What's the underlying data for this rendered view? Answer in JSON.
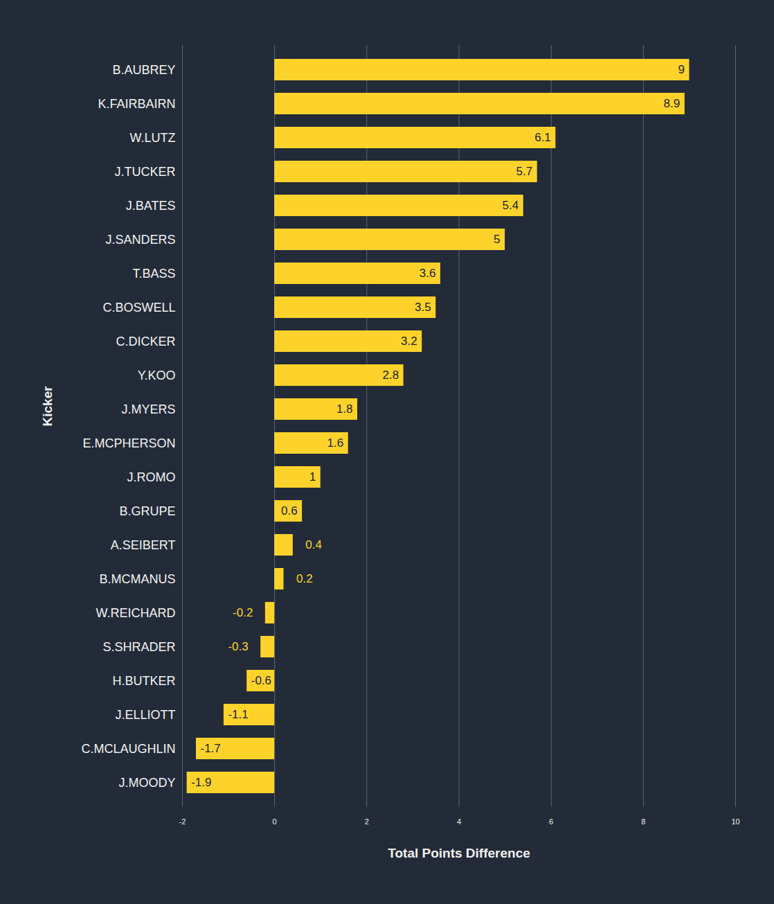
{
  "chart_data": {
    "type": "bar",
    "orientation": "horizontal",
    "xlabel": "Total Points Difference",
    "ylabel": "Kicker",
    "categories": [
      "B.AUBREY",
      "K.FAIRBAIRN",
      "W.LUTZ",
      "J.TUCKER",
      "J.BATES",
      "J.SANDERS",
      "T.BASS",
      "C.BOSWELL",
      "C.DICKER",
      "Y.KOO",
      "J.MYERS",
      "E.MCPHERSON",
      "J.ROMO",
      "B.GRUPE",
      "A.SEIBERT",
      "B.MCMANUS",
      "W.REICHARD",
      "S.SHRADER",
      "H.BUTKER",
      "J.ELLIOTT",
      "C.MCLAUGHLIN",
      "J.MOODY"
    ],
    "values": [
      9,
      8.9,
      6.1,
      5.7,
      5.4,
      5,
      3.6,
      3.5,
      3.2,
      2.8,
      1.8,
      1.6,
      1,
      0.6,
      0.4,
      0.2,
      -0.2,
      -0.3,
      -0.6,
      -1.1,
      -1.7,
      -1.9
    ],
    "color": "#fdd32b",
    "xlim": [
      -2,
      10
    ],
    "xticks": [
      -2,
      0,
      2,
      4,
      6,
      8,
      10
    ],
    "grid": true,
    "data_labels": true
  }
}
